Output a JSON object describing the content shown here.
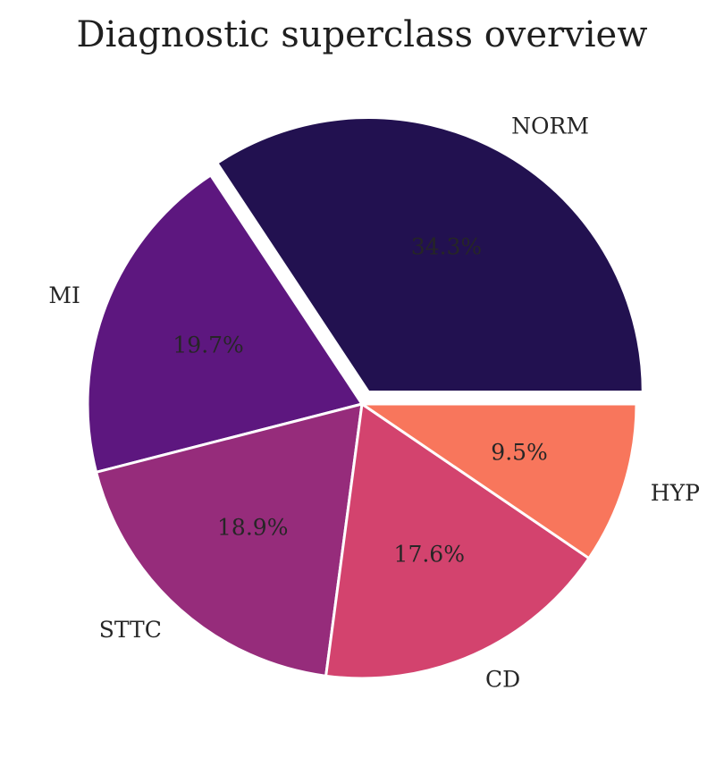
{
  "chart_data": {
    "type": "pie",
    "title": "Diagnostic superclass overview",
    "categories": [
      "NORM",
      "MI",
      "STTC",
      "CD",
      "HYP"
    ],
    "values": [
      34.3,
      19.7,
      18.9,
      17.6,
      9.5
    ],
    "value_labels": [
      "34.3%",
      "19.7%",
      "18.9%",
      "17.6%",
      "9.5%"
    ],
    "colors": [
      "#221150",
      "#5d177f",
      "#962c7b",
      "#d3436e",
      "#f8765c"
    ],
    "explode": [
      0.1,
      0,
      0,
      0,
      0
    ],
    "start_angle_deg": 0,
    "direction": "counterclockwise",
    "edge_color": "#ffffff"
  }
}
